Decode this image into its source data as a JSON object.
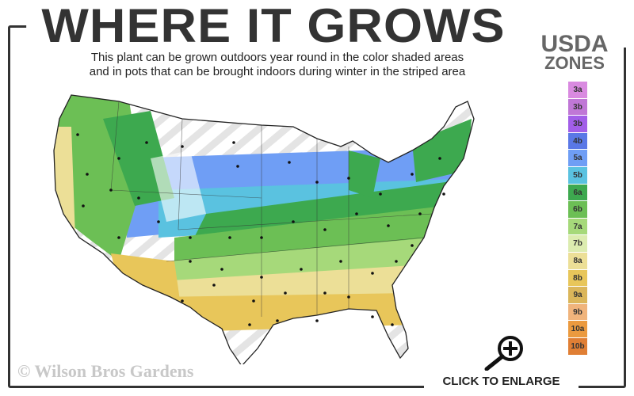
{
  "title": "WHERE IT GROWS",
  "subtitle_line1": "This plant can be grown outdoors year round in the color shaded areas",
  "subtitle_line2": "and in pots that can be brought indoors during winter in the striped area",
  "legend": {
    "title1": "USDA",
    "title2": "ZONES",
    "zones": [
      {
        "label": "3a",
        "color": "#d98ae0"
      },
      {
        "label": "3b",
        "color": "#c077d6"
      },
      {
        "label": "3b",
        "color": "#a25ee8"
      },
      {
        "label": "4b",
        "color": "#5a78e6"
      },
      {
        "label": "5a",
        "color": "#6f9ef5"
      },
      {
        "label": "5b",
        "color": "#5ac2e0"
      },
      {
        "label": "6a",
        "color": "#3da94f"
      },
      {
        "label": "6b",
        "color": "#6cbf55"
      },
      {
        "label": "7a",
        "color": "#a6d97a"
      },
      {
        "label": "7b",
        "color": "#dcecb0"
      },
      {
        "label": "8a",
        "color": "#ecdf97"
      },
      {
        "label": "8b",
        "color": "#e8c65a"
      },
      {
        "label": "9a",
        "color": "#dbb65a"
      },
      {
        "label": "9b",
        "color": "#f0b47c"
      },
      {
        "label": "10a",
        "color": "#eb9a3f"
      },
      {
        "label": "10b",
        "color": "#e07f35"
      }
    ]
  },
  "watermark": "© Wilson Bros Gardens",
  "enlarge_label": "CLICK TO ENLARGE"
}
